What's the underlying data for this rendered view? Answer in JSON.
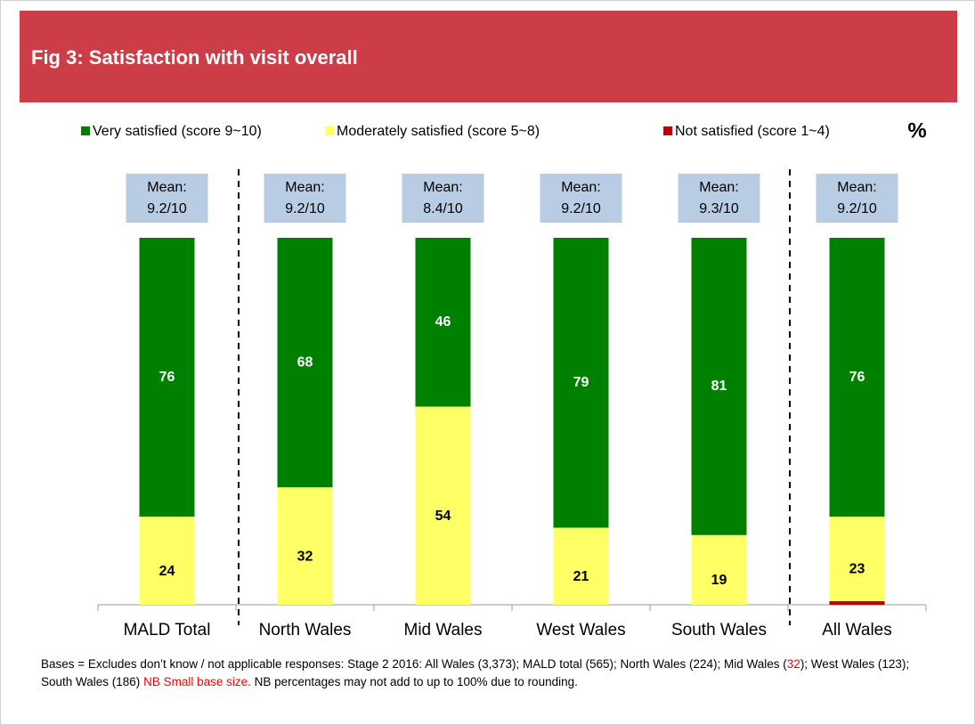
{
  "chart_data": {
    "type": "stacked_bar",
    "title": "Fig 3: Satisfaction with visit overall",
    "unit": "%",
    "categories": [
      "MALD Total",
      "North Wales",
      "Mid Wales",
      "West Wales",
      "South Wales",
      "All Wales"
    ],
    "series": [
      {
        "name": "Not satisfied (score 1~4)",
        "color": "#c00000",
        "values": [
          0,
          0,
          0,
          0,
          0,
          1
        ]
      },
      {
        "name": "Moderately satisfied (score 5~8)",
        "color": "#ffff66",
        "label_color": "#000000",
        "values": [
          24,
          32,
          54,
          21,
          19,
          23
        ]
      },
      {
        "name": "Very satisfied (score 9~10)",
        "color": "#008000",
        "label_color": "#ffffff",
        "values": [
          76,
          68,
          46,
          79,
          81,
          76
        ]
      }
    ],
    "legend_order": [
      2,
      1,
      0
    ],
    "mean_labels": [
      [
        "Mean:",
        "9.2/10"
      ],
      [
        "Mean:",
        "9.2/10"
      ],
      [
        "Mean:",
        "8.4/10"
      ],
      [
        "Mean:",
        "9.2/10"
      ],
      [
        "Mean:",
        "9.3/10"
      ],
      [
        "Mean:",
        "9.2/10"
      ]
    ],
    "ylim": [
      0,
      100
    ],
    "footnote": [
      "Bases = Excludes don’t know / not applicable responses: Stage 2 2016: All Wales (3,373);  MALD total (565); North Wales (224); Mid Wales (",
      "32",
      "); West Wales (123); South Wales (186) ",
      "NB Small base size.",
      " NB percentages may not add to up to 100% due to rounding."
    ]
  }
}
